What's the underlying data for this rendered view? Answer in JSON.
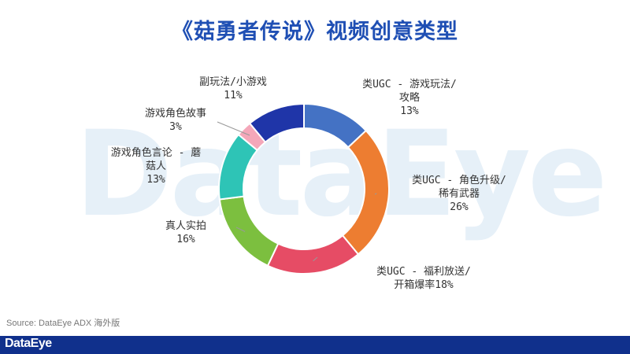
{
  "title": "《菇勇者传说》视频创意类型",
  "watermark": "DataEye",
  "source": "Source: DataEye ADX 海外版",
  "footer_logo": "DataEye",
  "chart_data": {
    "type": "pie",
    "variant": "donut",
    "start_angle_deg": 0,
    "direction": "clockwise",
    "slices": [
      {
        "label": "类UGC - 游戏玩法/攻略",
        "display": "类UGC - 游戏玩法/\n攻略\n13%",
        "value": 13,
        "color": "#4472c4"
      },
      {
        "label": "类UGC - 角色升级/稀有武器",
        "display": "类UGC - 角色升级/\n稀有武器\n26%",
        "value": 26,
        "color": "#ed7d31"
      },
      {
        "label": "类UGC - 福利放送/开箱爆率",
        "display": "类UGC - 福利放送/\n开箱爆率18%",
        "value": 18,
        "color": "#e64c65"
      },
      {
        "label": "真人实拍",
        "display": "真人实拍\n16%",
        "value": 16,
        "color": "#7cbf3f"
      },
      {
        "label": "游戏角色言论 - 蘑菇人",
        "display": "游戏角色言论 - 蘑\n菇人\n13%",
        "value": 13,
        "color": "#2ec4b6"
      },
      {
        "label": "游戏角色故事",
        "display": "游戏角色故事\n3%",
        "value": 3,
        "color": "#f4a7b9"
      },
      {
        "label": "副玩法/小游戏",
        "display": "副玩法/小游戏\n11%",
        "value": 11,
        "color": "#1f35a8"
      }
    ]
  }
}
